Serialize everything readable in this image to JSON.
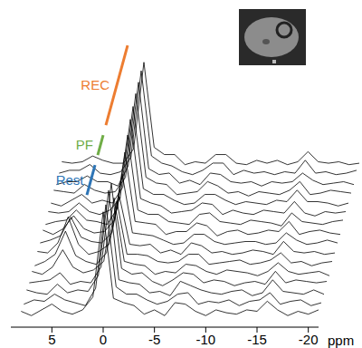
{
  "chart_data": {
    "type": "line",
    "xlabel": "ppm",
    "x": [
      8,
      7,
      6,
      5,
      4,
      3,
      2,
      1,
      0,
      -1,
      -2,
      -3,
      -4,
      -5,
      -6,
      -7,
      -8,
      -9,
      -10,
      -11,
      -12,
      -13,
      -14,
      -15,
      -16,
      -17,
      -18,
      -19,
      -20,
      -21
    ],
    "xlim": [
      9,
      -21
    ],
    "xticks": [
      5,
      0,
      -5,
      -10,
      -15,
      -20
    ],
    "ylim": [
      -1,
      10
    ],
    "tick_labels": "x",
    "color": "#000000",
    "annotations": [
      {
        "text": "Rest",
        "color": "#2e75b6",
        "start": 0,
        "end": 3
      },
      {
        "text": "PF",
        "color": "#70ad47",
        "start": 4,
        "end": 6
      },
      {
        "text": "REC",
        "color": "#ed7d31",
        "start": 7,
        "end": 15
      }
    ],
    "series": [
      {
        "values": [
          0.1,
          -0.2,
          0.2,
          0.6,
          0.1,
          -0.1,
          0.2,
          1.1,
          7.0,
          1.0,
          0.7,
          0.5,
          -0.1,
          0.2,
          -0.2,
          0.7,
          0.6,
          0.1,
          -0.2,
          0.2,
          0.0,
          -0.1,
          0.2,
          0.1,
          0.8,
          0.2,
          -0.2,
          0.1,
          -0.1,
          0.2
        ]
      },
      {
        "values": [
          -0.1,
          0.2,
          0.1,
          0.6,
          0.2,
          0.0,
          -0.2,
          1.0,
          6.8,
          1.1,
          0.6,
          0.6,
          0.2,
          -0.1,
          0.1,
          0.6,
          0.7,
          -0.1,
          0.1,
          0.0,
          0.2,
          -0.2,
          0.1,
          0.2,
          0.7,
          -0.1,
          0.1,
          0.2,
          -0.2,
          0.0
        ]
      },
      {
        "values": [
          0.2,
          0.0,
          -0.1,
          0.6,
          0.0,
          0.2,
          0.1,
          1.2,
          7.1,
          0.9,
          0.7,
          0.6,
          0.0,
          0.1,
          -0.2,
          0.8,
          0.5,
          0.2,
          0.0,
          -0.1,
          0.1,
          0.2,
          -0.2,
          0.0,
          0.9,
          0.1,
          0.0,
          -0.1,
          0.2,
          -0.1
        ]
      },
      {
        "values": [
          0.0,
          0.1,
          0.2,
          0.7,
          -0.1,
          0.1,
          0.0,
          1.1,
          6.9,
          1.0,
          0.6,
          0.7,
          0.1,
          -0.2,
          0.2,
          0.7,
          0.6,
          0.0,
          0.2,
          0.1,
          -0.2,
          0.0,
          0.1,
          -0.1,
          0.8,
          0.0,
          0.2,
          0.1,
          0.0,
          0.1
        ]
      },
      {
        "values": [
          0.1,
          -0.1,
          0.4,
          1.6,
          0.4,
          0.0,
          0.2,
          0.8,
          5.2,
          0.8,
          0.6,
          0.5,
          -0.1,
          0.1,
          0.0,
          0.6,
          0.5,
          0.1,
          -0.1,
          0.2,
          0.1,
          0.0,
          -0.2,
          0.1,
          0.7,
          0.1,
          -0.1,
          0.0,
          0.1,
          -0.2
        ]
      },
      {
        "values": [
          -0.2,
          0.1,
          0.6,
          2.2,
          0.5,
          0.1,
          -0.1,
          0.7,
          4.3,
          0.6,
          0.6,
          0.5,
          0.1,
          0.0,
          0.1,
          0.6,
          0.6,
          -0.1,
          0.0,
          0.1,
          0.2,
          -0.1,
          0.0,
          0.2,
          0.7,
          0.0,
          0.1,
          -0.2,
          0.0,
          0.1
        ]
      },
      {
        "values": [
          0.1,
          0.0,
          0.7,
          2.5,
          0.6,
          -0.1,
          0.1,
          0.6,
          3.9,
          0.6,
          0.5,
          0.6,
          0.0,
          0.2,
          -0.1,
          0.7,
          0.5,
          0.0,
          0.1,
          -0.1,
          0.0,
          0.2,
          0.1,
          -0.1,
          0.8,
          0.1,
          0.0,
          0.1,
          -0.1,
          0.0
        ]
      },
      {
        "values": [
          0.0,
          0.2,
          0.5,
          1.8,
          0.4,
          0.1,
          0.0,
          0.7,
          4.8,
          0.7,
          0.6,
          0.5,
          0.2,
          -0.1,
          0.0,
          0.6,
          0.6,
          0.1,
          -0.1,
          0.0,
          0.1,
          0.1,
          -0.1,
          0.0,
          0.7,
          0.2,
          -0.1,
          0.0,
          0.2,
          0.0
        ]
      },
      {
        "values": [
          0.2,
          -0.1,
          0.3,
          1.2,
          0.3,
          0.0,
          0.1,
          0.9,
          5.6,
          0.8,
          0.7,
          0.6,
          -0.1,
          0.1,
          0.1,
          0.7,
          0.5,
          -0.2,
          0.1,
          0.2,
          -0.1,
          0.0,
          0.2,
          0.1,
          0.8,
          -0.1,
          0.1,
          0.2,
          0.0,
          -0.1
        ]
      },
      {
        "values": [
          -0.1,
          0.1,
          0.2,
          0.9,
          0.2,
          0.1,
          -0.1,
          1.0,
          6.1,
          0.9,
          0.6,
          0.6,
          0.1,
          0.0,
          -0.1,
          0.6,
          0.7,
          0.1,
          0.0,
          -0.1,
          0.2,
          0.1,
          0.0,
          -0.2,
          0.7,
          0.1,
          0.0,
          -0.1,
          0.1,
          0.2
        ]
      },
      {
        "values": [
          0.1,
          0.0,
          0.1,
          0.7,
          0.1,
          -0.1,
          0.2,
          1.0,
          6.5,
          1.0,
          0.7,
          0.5,
          0.0,
          0.1,
          0.2,
          0.7,
          0.6,
          -0.1,
          0.2,
          0.0,
          -0.1,
          0.2,
          0.1,
          0.0,
          0.8,
          0.0,
          -0.2,
          0.1,
          0.0,
          0.1
        ]
      },
      {
        "values": [
          0.0,
          -0.2,
          0.2,
          0.6,
          0.0,
          0.2,
          0.0,
          1.1,
          6.7,
          1.0,
          0.6,
          0.6,
          0.2,
          -0.1,
          0.0,
          0.6,
          0.6,
          0.2,
          -0.1,
          0.1,
          0.0,
          -0.1,
          0.2,
          0.1,
          0.9,
          0.1,
          0.1,
          0.0,
          -0.2,
          0.0
        ]
      },
      {
        "values": [
          0.2,
          0.1,
          0.0,
          0.6,
          0.2,
          0.0,
          0.1,
          1.1,
          6.9,
          1.1,
          0.7,
          0.6,
          -0.1,
          0.0,
          0.1,
          0.8,
          0.5,
          0.0,
          0.1,
          -0.2,
          0.1,
          0.0,
          -0.1,
          0.2,
          0.8,
          -0.1,
          0.0,
          0.2,
          0.1,
          0.0
        ]
      },
      {
        "values": [
          -0.1,
          0.1,
          0.1,
          0.5,
          0.1,
          0.1,
          -0.2,
          1.2,
          7.0,
          1.0,
          0.6,
          0.7,
          0.0,
          0.2,
          -0.1,
          0.7,
          0.6,
          0.1,
          0.0,
          0.1,
          -0.2,
          0.1,
          0.0,
          0.1,
          0.7,
          0.2,
          -0.1,
          0.0,
          0.1,
          -0.1
        ]
      },
      {
        "values": [
          0.0,
          0.2,
          0.2,
          0.6,
          0.0,
          -0.1,
          0.1,
          1.1,
          7.1,
          1.2,
          0.7,
          0.5,
          0.1,
          -0.1,
          0.2,
          0.7,
          0.7,
          -0.1,
          0.2,
          0.0,
          0.1,
          -0.1,
          0.1,
          0.0,
          0.9,
          0.0,
          0.1,
          -0.1,
          0.0,
          0.2
        ]
      },
      {
        "values": [
          0.1,
          0.0,
          0.1,
          0.5,
          0.2,
          0.0,
          0.0,
          1.0,
          7.0,
          1.1,
          0.6,
          0.6,
          -0.1,
          0.1,
          0.0,
          0.6,
          0.6,
          0.0,
          -0.1,
          0.2,
          0.0,
          0.2,
          -0.1,
          0.1,
          0.8,
          0.1,
          0.0,
          0.1,
          -0.1,
          0.0
        ]
      }
    ]
  }
}
